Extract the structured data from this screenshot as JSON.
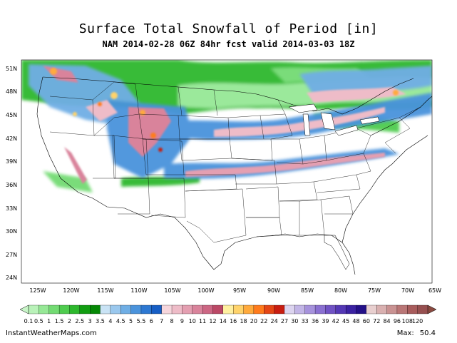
{
  "title": "Surface Total Snowfall of Period [in]",
  "subtitle": "NAM 2014-02-28 06Z 84hr fcst valid 2014-03-03 18Z",
  "credit": "InstantWeatherMaps.com",
  "max_label": "Max:",
  "max_value": "50.4",
  "map": {
    "lat_labels": [
      "51N",
      "48N",
      "45N",
      "42N",
      "39N",
      "36N",
      "33N",
      "30N",
      "27N",
      "24N"
    ],
    "lon_labels": [
      "125W",
      "120W",
      "115W",
      "110W",
      "105W",
      "100W",
      "95W",
      "90W",
      "85W",
      "80W",
      "75W",
      "70W",
      "65W"
    ]
  },
  "legend": {
    "labels": [
      "0.1",
      "0.5",
      "1",
      "1.5",
      "2",
      "2.5",
      "3",
      "3.5",
      "4",
      "4.5",
      "5",
      "5.5",
      "6",
      "7",
      "8",
      "9",
      "10",
      "11",
      "12",
      "14",
      "16",
      "18",
      "20",
      "22",
      "24",
      "27",
      "30",
      "33",
      "36",
      "39",
      "42",
      "45",
      "48",
      "60",
      "72",
      "84",
      "96",
      "108",
      "120"
    ],
    "colors": [
      "#b9f2b9",
      "#96e896",
      "#73db73",
      "#4fcc4f",
      "#2db82d",
      "#129e12",
      "#058805",
      "#c9e3f5",
      "#9ac8ee",
      "#6faee5",
      "#4a93dc",
      "#2d78d2",
      "#165ec5",
      "#f6d6dc",
      "#eebcc8",
      "#e49fb1",
      "#d9839b",
      "#cc6683",
      "#bb4866",
      "#fff0a0",
      "#ffd36b",
      "#ffaa3c",
      "#ff7b1c",
      "#e44615",
      "#c81d10",
      "#dcd4ef",
      "#c2b5e6",
      "#a692dc",
      "#8a70d1",
      "#7052c4",
      "#5438b5",
      "#3b22a2",
      "#241088",
      "#e8cfcf",
      "#d9b0b0",
      "#c99292",
      "#b97676",
      "#a85c5c",
      "#975050"
    ]
  }
}
